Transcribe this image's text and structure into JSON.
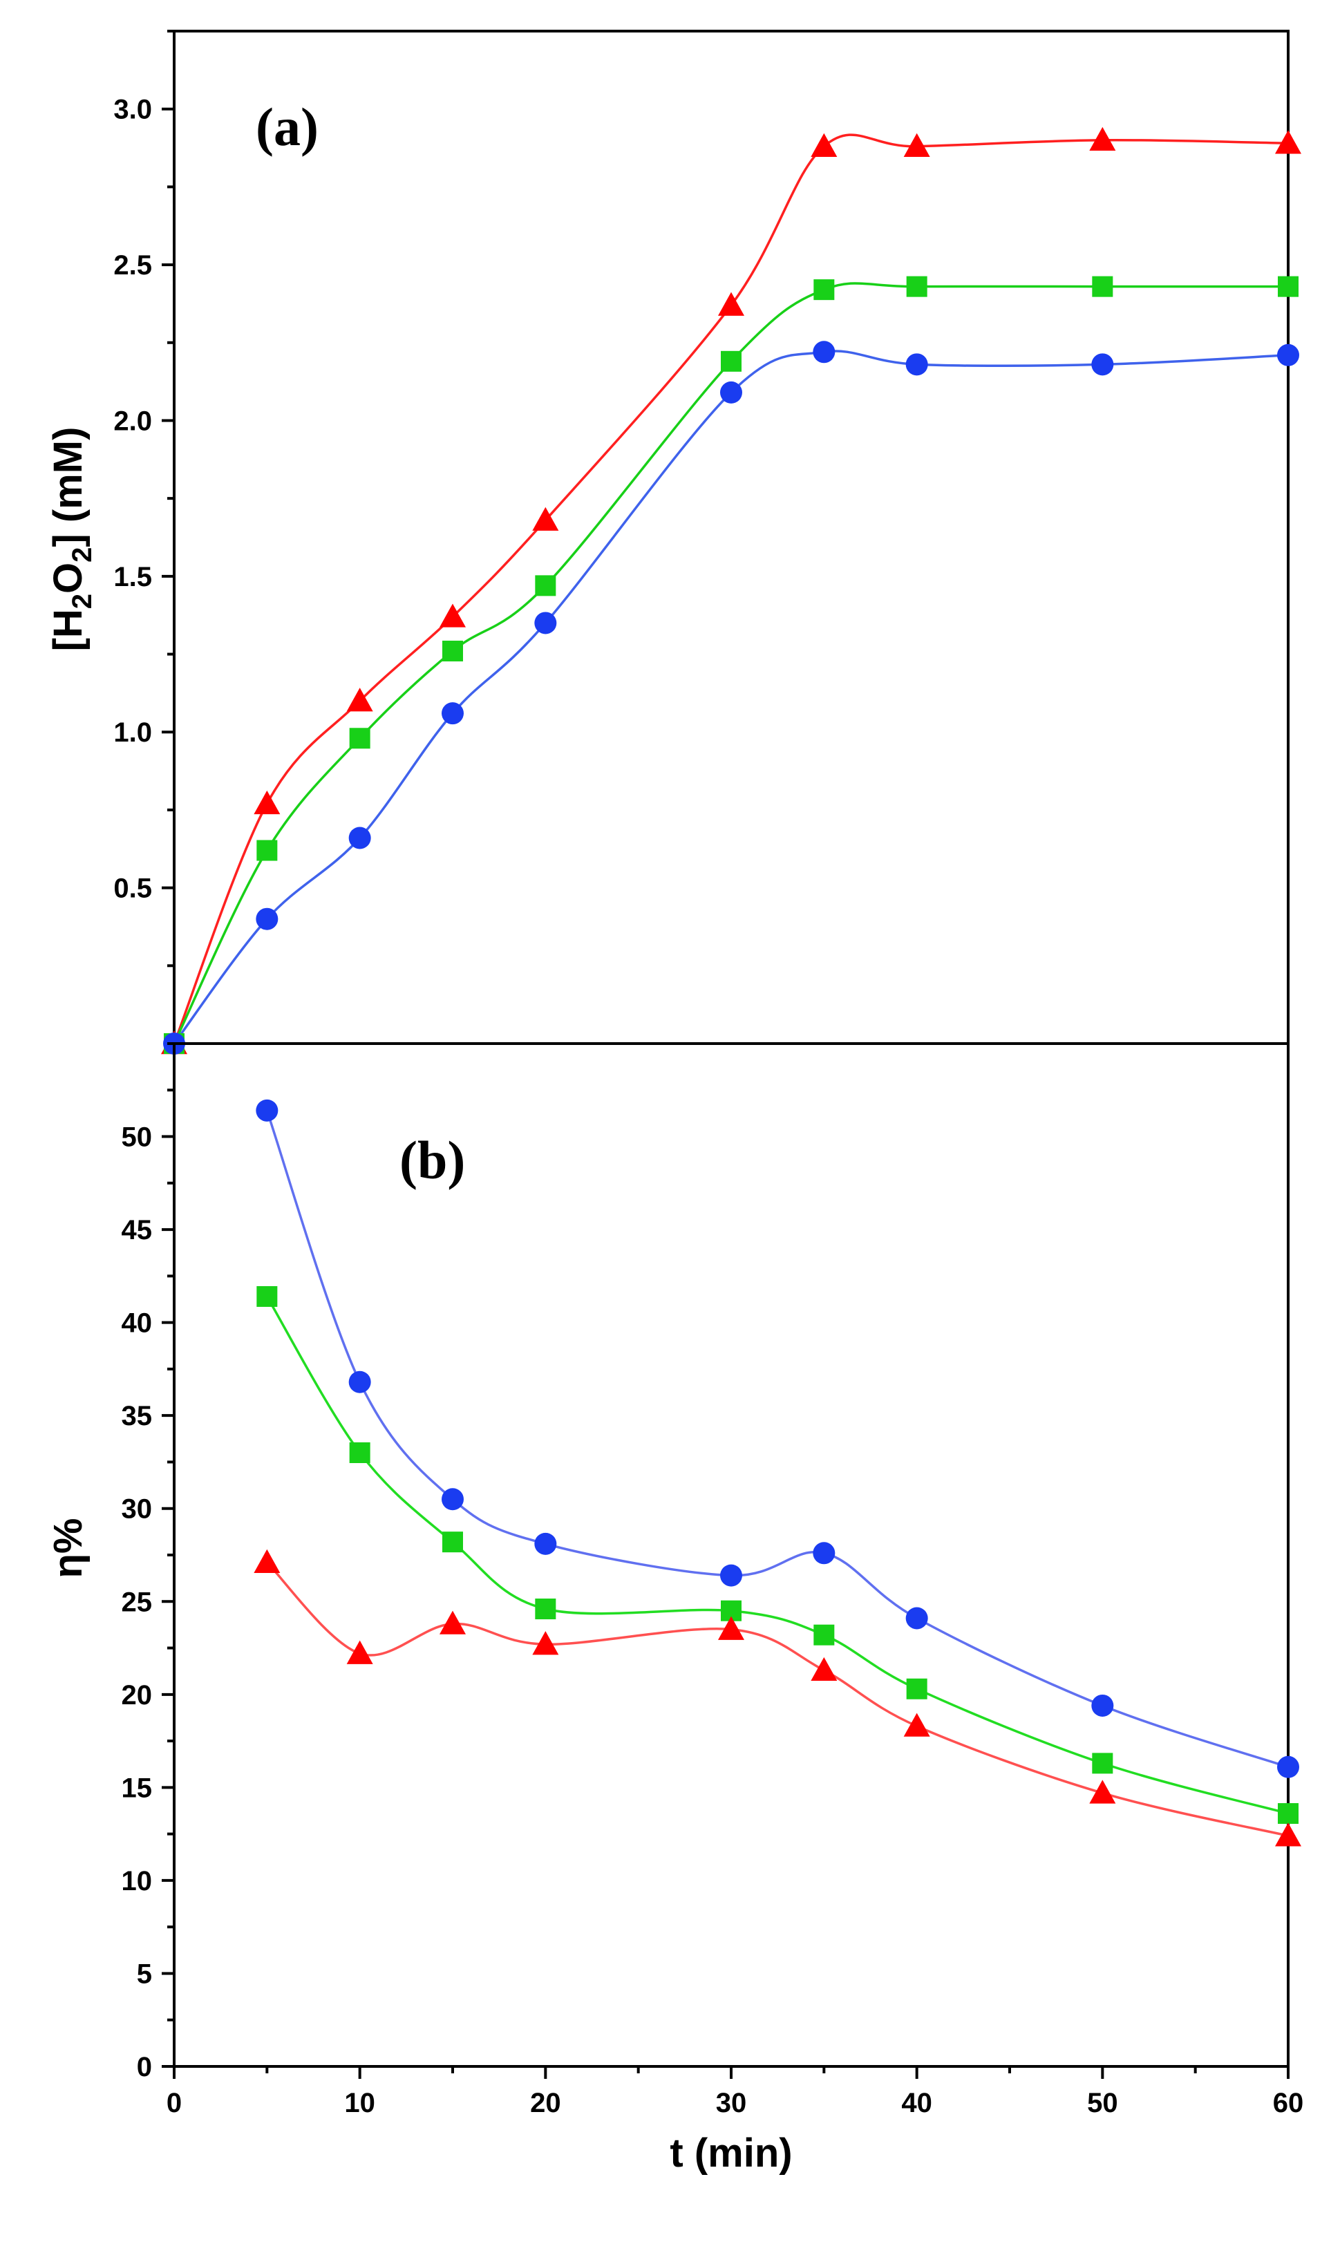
{
  "chart_data": [
    {
      "type": "line",
      "panel_label": "(a)",
      "ylabel": {
        "prefix": "[H",
        "sub1": "2",
        "mid": "O",
        "sub2": "2",
        "suffix": "] (mM)"
      },
      "xlabel": "",
      "xlim": [
        0,
        60
      ],
      "ylim": [
        0,
        3.25
      ],
      "yticks": [
        0.5,
        1.0,
        1.5,
        2.0,
        2.5,
        3.0
      ],
      "ytick_labels": [
        "0.5",
        "1.0",
        "1.5",
        "2.0",
        "2.5",
        "3.0"
      ],
      "x": [
        0,
        5,
        10,
        15,
        20,
        30,
        35,
        40,
        50,
        60
      ],
      "series": [
        {
          "name": "triangle-red",
          "marker": "triangle",
          "color": "#ff0000",
          "line_color": "#ff2020",
          "values": [
            0,
            0.77,
            1.1,
            1.37,
            1.68,
            2.37,
            2.88,
            2.88,
            2.9,
            2.89
          ]
        },
        {
          "name": "square-green",
          "marker": "square",
          "color": "#18d018",
          "line_color": "#18d018",
          "values": [
            0,
            0.62,
            0.98,
            1.26,
            1.47,
            2.19,
            2.42,
            2.43,
            2.43,
            2.43
          ]
        },
        {
          "name": "circle-blue",
          "marker": "circle",
          "color": "#1a3cf0",
          "line_color": "#3f62ec",
          "values": [
            0,
            0.4,
            0.66,
            1.06,
            1.35,
            2.09,
            2.22,
            2.18,
            2.18,
            2.21
          ]
        }
      ]
    },
    {
      "type": "line",
      "panel_label": "(b)",
      "ylabel": "η%",
      "xlabel": "t (min)",
      "xlim": [
        0,
        60
      ],
      "ylim": [
        0,
        55
      ],
      "xticks": [
        0,
        10,
        20,
        30,
        40,
        50,
        60
      ],
      "xtick_labels": [
        "0",
        "10",
        "20",
        "30",
        "40",
        "50",
        "60"
      ],
      "yticks": [
        0,
        5,
        10,
        15,
        20,
        25,
        30,
        35,
        40,
        45,
        50
      ],
      "ytick_labels": [
        "0",
        "5",
        "10",
        "15",
        "20",
        "25",
        "30",
        "35",
        "40",
        "45",
        "50"
      ],
      "x": [
        5,
        10,
        15,
        20,
        30,
        35,
        40,
        50,
        60
      ],
      "series": [
        {
          "name": "circle-blue",
          "marker": "circle",
          "color": "#1a3cf0",
          "line_color": "#6070f0",
          "values": [
            51.4,
            36.8,
            30.5,
            28.1,
            26.4,
            27.6,
            24.1,
            19.4,
            16.1
          ]
        },
        {
          "name": "square-green",
          "marker": "square",
          "color": "#18d018",
          "line_color": "#22dd22",
          "values": [
            41.4,
            33.0,
            28.2,
            24.6,
            24.5,
            23.2,
            20.3,
            16.3,
            13.6
          ]
        },
        {
          "name": "triangle-red",
          "marker": "triangle",
          "color": "#ff0000",
          "line_color": "#ff5050",
          "values": [
            27.1,
            22.2,
            23.8,
            22.7,
            23.5,
            21.3,
            18.3,
            14.7,
            12.4
          ]
        }
      ]
    }
  ]
}
